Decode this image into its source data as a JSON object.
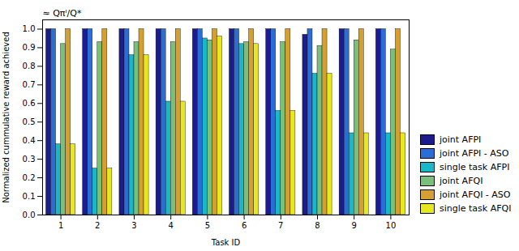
{
  "chart_data": {
    "type": "bar",
    "categories": [
      "1",
      "2",
      "3",
      "4",
      "5",
      "6",
      "7",
      "8",
      "9",
      "10"
    ],
    "series": [
      {
        "name": "joint AFPI",
        "color": "#1c1c8f",
        "values": [
          1.0,
          1.0,
          1.0,
          1.0,
          1.0,
          1.0,
          1.0,
          0.97,
          1.0,
          1.0
        ]
      },
      {
        "name": "joint AFPI - ASO",
        "color": "#2b6dd4",
        "values": [
          1.0,
          1.0,
          1.0,
          1.0,
          1.0,
          1.0,
          1.0,
          1.0,
          1.0,
          1.0
        ]
      },
      {
        "name": "single task AFPI",
        "color": "#18b8c8",
        "values": [
          0.38,
          0.25,
          0.86,
          0.61,
          0.95,
          0.92,
          0.56,
          0.76,
          0.44,
          0.44
        ]
      },
      {
        "name": "joint AFQI",
        "color": "#7abf7a",
        "values": [
          0.92,
          0.93,
          0.93,
          0.93,
          0.94,
          0.93,
          0.93,
          0.91,
          0.94,
          0.89
        ]
      },
      {
        "name": "joint AFQI - ASO",
        "color": "#d4a030",
        "values": [
          1.0,
          1.0,
          1.0,
          1.0,
          1.0,
          1.0,
          1.0,
          1.0,
          1.0,
          1.0
        ]
      },
      {
        "name": "single task AFQI",
        "color": "#e8e820",
        "values": [
          0.38,
          0.25,
          0.86,
          0.61,
          0.96,
          0.92,
          0.56,
          0.76,
          0.44,
          0.44
        ]
      }
    ],
    "xlabel": "Task ID",
    "ylabel": "Normalized cummulative reward achieved",
    "annotations": [
      "≈ Qπᴵ/Q*"
    ],
    "ylim": [
      0,
      1.05
    ],
    "yticks": [
      {
        "value": 0,
        "label": "0.0"
      },
      0.1,
      0.2,
      0.3,
      0.4,
      0.5,
      0.6,
      0.7,
      0.8,
      0.9,
      {
        "value": 1,
        "label": "1.0"
      }
    ],
    "grid": false,
    "legend": "lower right"
  }
}
